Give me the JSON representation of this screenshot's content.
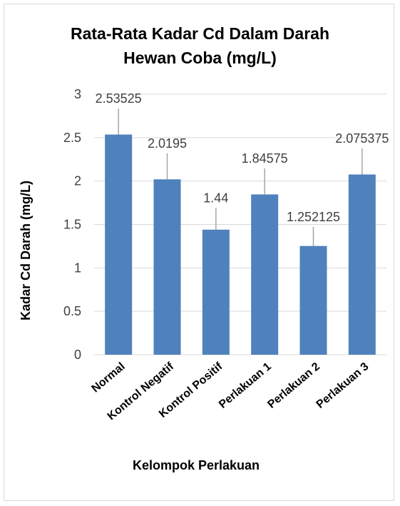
{
  "chart_data": {
    "type": "bar",
    "title_line1": "Rata-Rata Kadar Cd Dalam Darah",
    "title_line2": "Hewan Coba (mg/L)",
    "xlabel": "Kelompok Perlakuan",
    "ylabel": "Kadar Cd Darah (mg/L)",
    "categories": [
      "Normal",
      "Kontrol Negatif",
      "Kontrol Positif",
      "Perlakuan 1",
      "Perlakuan 2",
      "Perlakuan 3"
    ],
    "values": [
      2.53525,
      2.0195,
      1.44,
      1.84575,
      1.252125,
      2.075375
    ],
    "value_labels": [
      "2.53525",
      "2.0195",
      "1.44",
      "1.84575",
      "1.252125",
      "2.075375"
    ],
    "error": [
      0.3,
      0.3,
      0.25,
      0.3,
      0.22,
      0.3
    ],
    "ylim": [
      0,
      3
    ],
    "yticks": [
      "0",
      "0.5",
      "1",
      "1.5",
      "2",
      "2.5",
      "3"
    ],
    "grid": true,
    "legend": "none",
    "bar_color": "#4f81bd",
    "grid_color": "#d9d9d9",
    "errorbar_color": "#a6a6a6"
  }
}
